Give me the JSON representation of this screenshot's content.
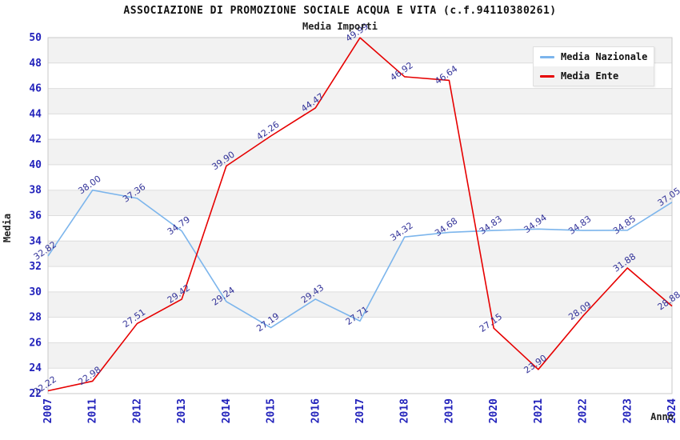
{
  "header": {
    "title": "ASSOCIAZIONE DI PROMOZIONE SOCIALE ACQUA E VITA (c.f.94110380261)",
    "subtitle": "Media Importi"
  },
  "chart_data": {
    "type": "line",
    "title": "ASSOCIAZIONE DI PROMOZIONE SOCIALE ACQUA E VITA (c.f.94110380261)",
    "subtitle": "Media Importi",
    "xlabel": "Anno",
    "ylabel": "Media",
    "categories": [
      "2007",
      "2011",
      "2012",
      "2013",
      "2014",
      "2015",
      "2016",
      "2017",
      "2018",
      "2019",
      "2020",
      "2021",
      "2022",
      "2023",
      "2024"
    ],
    "series": [
      {
        "name": "Media Nazionale",
        "color": "#7cb5ec",
        "values": [
          32.82,
          38.0,
          37.36,
          34.79,
          29.24,
          27.19,
          29.43,
          27.71,
          34.32,
          34.68,
          34.83,
          34.94,
          34.83,
          34.85,
          37.05
        ]
      },
      {
        "name": "Media Ente",
        "color": "#e60000",
        "values": [
          22.22,
          22.98,
          27.51,
          29.42,
          39.9,
          42.26,
          44.47,
          49.99,
          46.92,
          46.64,
          27.15,
          23.9,
          28.09,
          31.88,
          28.88
        ]
      }
    ],
    "ylim": [
      22,
      50
    ],
    "ytick_step": 2,
    "grid": true,
    "legend_position": "top-right",
    "colors": {
      "tick_label": "#2222bb",
      "data_label": "#333399",
      "band": "#f2f2f2",
      "gridline": "#dddddd",
      "frame": "#c9c9c9",
      "text": "#111111"
    }
  }
}
